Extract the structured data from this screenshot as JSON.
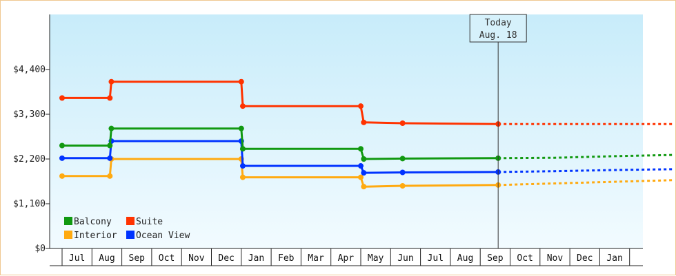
{
  "chart_data": {
    "type": "line",
    "title": "",
    "xlabel": "",
    "ylabel": "",
    "ylim": [
      0,
      5000
    ],
    "y_ticks": [
      {
        "value": 0,
        "label": "$0"
      },
      {
        "value": 1100,
        "label": "$1,100"
      },
      {
        "value": 2200,
        "label": "$2,200"
      },
      {
        "value": 3300,
        "label": "$3,300"
      },
      {
        "value": 4400,
        "label": "$4,400"
      }
    ],
    "x_months": [
      "Jul",
      "Aug",
      "Sep",
      "Oct",
      "Nov",
      "Dec",
      "Jan",
      "Feb",
      "Mar",
      "Apr",
      "May",
      "Jun",
      "Jul",
      "Aug",
      "Sep",
      "Oct",
      "Nov",
      "Dec",
      "Jan"
    ],
    "today": {
      "line1": "Today",
      "line2": "Aug. 18",
      "x": 14.6
    },
    "legend_position": "bottom-left",
    "series": [
      {
        "name": "Suite",
        "color": "#ff3300",
        "points": [
          [
            0,
            3700
          ],
          [
            1.6,
            3700
          ],
          [
            1.65,
            4100
          ],
          [
            6.0,
            4100
          ],
          [
            6.05,
            3500
          ],
          [
            10.0,
            3500
          ],
          [
            10.1,
            3100
          ],
          [
            11.4,
            3080
          ],
          [
            14.6,
            3060
          ]
        ],
        "forecast": [
          [
            14.6,
            3060
          ],
          [
            20.5,
            3060
          ]
        ]
      },
      {
        "name": "Balcony",
        "color": "#119911",
        "points": [
          [
            0,
            2530
          ],
          [
            1.6,
            2530
          ],
          [
            1.65,
            2950
          ],
          [
            6.0,
            2950
          ],
          [
            6.05,
            2450
          ],
          [
            10.0,
            2450
          ],
          [
            10.1,
            2200
          ],
          [
            11.4,
            2210
          ],
          [
            14.6,
            2220
          ]
        ],
        "forecast": [
          [
            14.6,
            2220
          ],
          [
            16.5,
            2230
          ],
          [
            18.5,
            2270
          ],
          [
            20.5,
            2300
          ]
        ]
      },
      {
        "name": "Ocean View",
        "color": "#0033ff",
        "points": [
          [
            0,
            2220
          ],
          [
            1.6,
            2220
          ],
          [
            1.65,
            2640
          ],
          [
            6.0,
            2640
          ],
          [
            6.05,
            2030
          ],
          [
            10.0,
            2030
          ],
          [
            10.1,
            1860
          ],
          [
            11.4,
            1870
          ],
          [
            14.6,
            1880
          ]
        ],
        "forecast": [
          [
            14.6,
            1880
          ],
          [
            16.5,
            1900
          ],
          [
            18.5,
            1930
          ],
          [
            20.5,
            1950
          ]
        ]
      },
      {
        "name": "Interior",
        "color": "#ffaa11",
        "points": [
          [
            0,
            1780
          ],
          [
            1.6,
            1780
          ],
          [
            1.65,
            2200
          ],
          [
            6.0,
            2200
          ],
          [
            6.05,
            1750
          ],
          [
            10.0,
            1750
          ],
          [
            10.1,
            1520
          ],
          [
            11.4,
            1540
          ],
          [
            14.6,
            1560
          ]
        ],
        "forecast": [
          [
            14.6,
            1560
          ],
          [
            16.5,
            1600
          ],
          [
            18.5,
            1640
          ],
          [
            20.5,
            1680
          ]
        ]
      }
    ],
    "legend": [
      {
        "name": "Balcony",
        "color": "#119911"
      },
      {
        "name": "Suite",
        "color": "#ff3300"
      },
      {
        "name": "Interior",
        "color": "#ffaa11"
      },
      {
        "name": "Ocean View",
        "color": "#0033ff"
      }
    ]
  }
}
